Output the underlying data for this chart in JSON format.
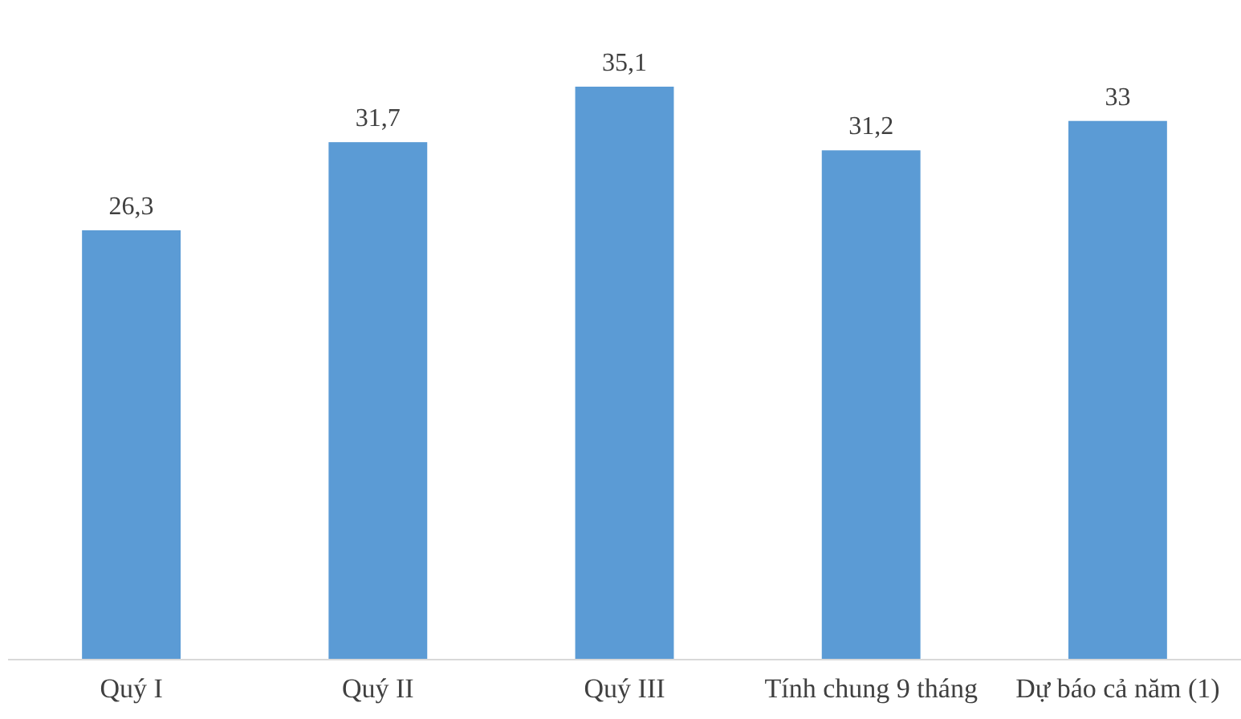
{
  "chart_data": {
    "type": "bar",
    "categories": [
      "Quý I",
      "Quý II",
      "Quý III",
      "Tính chung 9 tháng",
      "Dự báo cả năm (1)"
    ],
    "values": [
      26.3,
      31.7,
      35.1,
      31.2,
      33
    ],
    "value_labels": [
      "26,3",
      "31,7",
      "35,1",
      "31,2",
      "33"
    ],
    "color": "#5b9bd5"
  }
}
